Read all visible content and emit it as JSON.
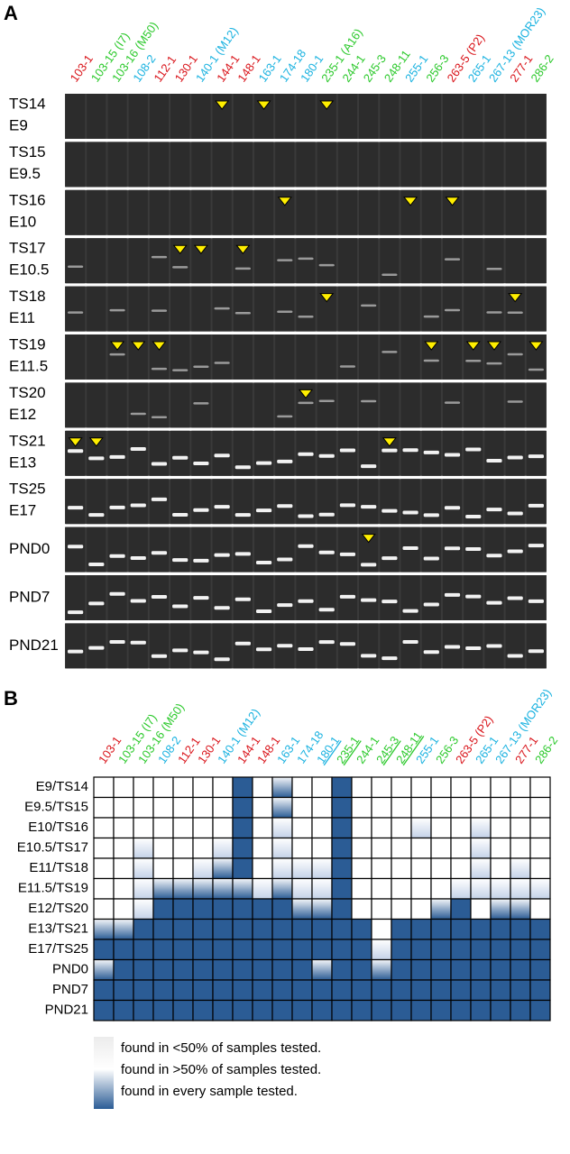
{
  "panel_a": {
    "label": "A",
    "columns": [
      {
        "label": "103-1",
        "color": "#d9141a"
      },
      {
        "label": "103-15 (I7)",
        "color": "#2cc92c"
      },
      {
        "label": "103-16 (M50)",
        "color": "#2cc92c"
      },
      {
        "label": "108-2",
        "color": "#1ab2e0"
      },
      {
        "label": "112-1",
        "color": "#d9141a"
      },
      {
        "label": "130-1",
        "color": "#d9141a"
      },
      {
        "label": "140-1 (M12)",
        "color": "#1ab2e0"
      },
      {
        "label": "144-1",
        "color": "#d9141a"
      },
      {
        "label": "148-1",
        "color": "#d9141a"
      },
      {
        "label": "163-1",
        "color": "#1ab2e0"
      },
      {
        "label": "174-18",
        "color": "#1ab2e0"
      },
      {
        "label": "180-1",
        "color": "#1ab2e0"
      },
      {
        "label": "235-1 (A16)",
        "color": "#2cc92c"
      },
      {
        "label": "244-1",
        "color": "#2cc92c"
      },
      {
        "label": "245-3",
        "color": "#2cc92c"
      },
      {
        "label": "248-11",
        "color": "#2cc92c"
      },
      {
        "label": "255-1",
        "color": "#1ab2e0"
      },
      {
        "label": "256-3",
        "color": "#2cc92c"
      },
      {
        "label": "263-5 (P2)",
        "color": "#d9141a"
      },
      {
        "label": "265-1",
        "color": "#1ab2e0"
      },
      {
        "label": "267-13 (MOR23)",
        "color": "#1ab2e0"
      },
      {
        "label": "277-1",
        "color": "#d9141a"
      },
      {
        "label": "286-2",
        "color": "#2cc92c"
      }
    ],
    "rows": [
      [
        "TS14",
        "E9"
      ],
      [
        "TS15",
        "E9.5"
      ],
      [
        "TS16",
        "E10"
      ],
      [
        "TS17",
        "E10.5"
      ],
      [
        "TS18",
        "E11"
      ],
      [
        "TS19",
        "E11.5"
      ],
      [
        "TS20",
        "E12"
      ],
      [
        "TS21",
        "E13"
      ],
      [
        "TS25",
        "E17"
      ],
      [
        "PND0"
      ],
      [
        "PND7"
      ],
      [
        "PND21"
      ]
    ]
  },
  "panel_b": {
    "label": "B",
    "columns": [
      {
        "label": "103-1",
        "color": "#d9141a",
        "underline": false
      },
      {
        "label": "103-15 (I7)",
        "color": "#2cc92c",
        "underline": false
      },
      {
        "label": "103-16 (M50)",
        "color": "#2cc92c",
        "underline": false
      },
      {
        "label": "108-2",
        "color": "#1ab2e0",
        "underline": false
      },
      {
        "label": "112-1",
        "color": "#d9141a",
        "underline": false
      },
      {
        "label": "130-1",
        "color": "#d9141a",
        "underline": false
      },
      {
        "label": "140-1 (M12)",
        "color": "#1ab2e0",
        "underline": false
      },
      {
        "label": "144-1",
        "color": "#d9141a",
        "underline": false
      },
      {
        "label": "148-1",
        "color": "#d9141a",
        "underline": false
      },
      {
        "label": "163-1",
        "color": "#1ab2e0",
        "underline": false
      },
      {
        "label": "174-18",
        "color": "#1ab2e0",
        "underline": false
      },
      {
        "label": "180-1",
        "color": "#1ab2e0",
        "underline": true
      },
      {
        "label": "235-1",
        "color": "#2cc92c",
        "underline": true
      },
      {
        "label": "244-1",
        "color": "#2cc92c",
        "underline": false
      },
      {
        "label": "245-3",
        "color": "#2cc92c",
        "underline": true
      },
      {
        "label": "248-11",
        "color": "#2cc92c",
        "underline": true
      },
      {
        "label": "255-1",
        "color": "#1ab2e0",
        "underline": false
      },
      {
        "label": "256-3",
        "color": "#2cc92c",
        "underline": false
      },
      {
        "label": "263-5 (P2)",
        "color": "#d9141a",
        "underline": false
      },
      {
        "label": "265-1",
        "color": "#1ab2e0",
        "underline": false
      },
      {
        "label": "267-13 (MOR23)",
        "color": "#1ab2e0",
        "underline": false
      },
      {
        "label": "277-1",
        "color": "#d9141a",
        "underline": false
      },
      {
        "label": "286-2",
        "color": "#2cc92c",
        "underline": false
      }
    ],
    "rows": [
      "E9/TS14",
      "E9.5/TS15",
      "E10/TS16",
      "E10.5/TS17",
      "E11/TS18",
      "E11.5/TS19",
      "E12/TS20",
      "E13/TS21",
      "E17/TS25",
      "PND0",
      "PND7",
      "PND21"
    ],
    "cells": [
      [
        0,
        0,
        0,
        0,
        0,
        0,
        0,
        3,
        0,
        2,
        0,
        0,
        3,
        0,
        0,
        0,
        0,
        0,
        0,
        0,
        0,
        0,
        0
      ],
      [
        0,
        0,
        0,
        0,
        0,
        0,
        0,
        3,
        0,
        2,
        0,
        0,
        3,
        0,
        0,
        0,
        0,
        0,
        0,
        0,
        0,
        0,
        0
      ],
      [
        0,
        0,
        0,
        0,
        0,
        0,
        0,
        3,
        0,
        1,
        0,
        0,
        3,
        0,
        0,
        0,
        1,
        0,
        0,
        1,
        0,
        0,
        0
      ],
      [
        0,
        0,
        1,
        0,
        0,
        0,
        1,
        3,
        0,
        1,
        0,
        0,
        3,
        0,
        0,
        0,
        0,
        0,
        0,
        1,
        0,
        0,
        0
      ],
      [
        0,
        0,
        1,
        0,
        0,
        1,
        2,
        3,
        0,
        1,
        1,
        1,
        3,
        0,
        0,
        0,
        0,
        0,
        0,
        1,
        0,
        1,
        0
      ],
      [
        0,
        0,
        1,
        2,
        2,
        2,
        2,
        2,
        1,
        2,
        1,
        1,
        3,
        0,
        0,
        0,
        0,
        0,
        1,
        1,
        1,
        1,
        1
      ],
      [
        0,
        0,
        1,
        3,
        3,
        3,
        3,
        3,
        3,
        3,
        2,
        2,
        3,
        0,
        0,
        0,
        0,
        2,
        3,
        0,
        2,
        2,
        0
      ],
      [
        2,
        2,
        3,
        3,
        3,
        3,
        3,
        3,
        3,
        3,
        3,
        3,
        3,
        3,
        0,
        3,
        3,
        3,
        3,
        3,
        3,
        3,
        3
      ],
      [
        3,
        3,
        3,
        3,
        3,
        3,
        3,
        3,
        3,
        3,
        3,
        3,
        3,
        3,
        1,
        3,
        3,
        3,
        3,
        3,
        3,
        3,
        3
      ],
      [
        2,
        3,
        3,
        3,
        3,
        3,
        3,
        3,
        3,
        3,
        3,
        2,
        3,
        3,
        2,
        3,
        3,
        3,
        3,
        3,
        3,
        3,
        3
      ],
      [
        3,
        3,
        3,
        3,
        3,
        3,
        3,
        3,
        3,
        3,
        3,
        3,
        3,
        3,
        3,
        3,
        3,
        3,
        3,
        3,
        3,
        3,
        3
      ],
      [
        3,
        3,
        3,
        3,
        3,
        3,
        3,
        3,
        3,
        3,
        3,
        3,
        3,
        3,
        3,
        3,
        3,
        3,
        3,
        3,
        3,
        3,
        3
      ]
    ],
    "legend": [
      "found in <50% of samples tested.",
      "found in >50% of samples tested.",
      "found in every sample tested."
    ]
  }
}
